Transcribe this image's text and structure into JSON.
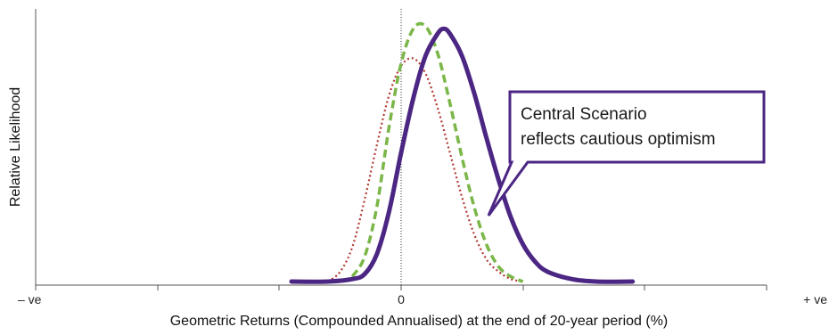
{
  "chart_data": {
    "type": "line",
    "title": "",
    "xlabel": "Geometric Returns (Compounded Annualised) at the end of 20-year period (%)",
    "ylabel": "Relative Likelihood",
    "x_tick_labels": [
      {
        "x": -3,
        "label": "– ve"
      },
      {
        "x": 0,
        "label": "0"
      },
      {
        "x": 3,
        "label": "+ ve"
      }
    ],
    "xlim": [
      -3,
      3
    ],
    "ylim": [
      0,
      1.1
    ],
    "grid": false,
    "legend": "none",
    "series": [
      {
        "style": "solid",
        "color": "#4b2683",
        "x": [
          -0.9,
          -0.6,
          -0.4,
          -0.3,
          -0.2,
          -0.1,
          0.0,
          0.1,
          0.2,
          0.3,
          0.35,
          0.4,
          0.5,
          0.6,
          0.7,
          0.8,
          0.9,
          1.0,
          1.1,
          1.2,
          1.4,
          1.6,
          1.9
        ],
        "y": [
          0.0,
          0.0,
          0.01,
          0.03,
          0.11,
          0.28,
          0.52,
          0.74,
          0.91,
          1.0,
          1.02,
          1.0,
          0.91,
          0.76,
          0.58,
          0.41,
          0.26,
          0.15,
          0.08,
          0.04,
          0.01,
          0.0,
          0.0
        ]
      },
      {
        "style": "dashed",
        "color": "#7ab648",
        "x": [
          -0.4,
          -0.3,
          -0.2,
          -0.1,
          0.0,
          0.1,
          0.2,
          0.3,
          0.4,
          0.5,
          0.6,
          0.7,
          0.8,
          0.9,
          1.0
        ],
        "y": [
          0.02,
          0.1,
          0.3,
          0.62,
          0.88,
          1.02,
          1.03,
          0.92,
          0.72,
          0.5,
          0.3,
          0.15,
          0.06,
          0.02,
          0.0
        ]
      },
      {
        "style": "dotted",
        "color": "#b23b33",
        "x": [
          -0.6,
          -0.5,
          -0.4,
          -0.3,
          -0.2,
          -0.1,
          0.0,
          0.1,
          0.2,
          0.3,
          0.4,
          0.5,
          0.6,
          0.7,
          0.8,
          0.9,
          1.0
        ],
        "y": [
          0.0,
          0.04,
          0.14,
          0.33,
          0.55,
          0.75,
          0.87,
          0.9,
          0.84,
          0.7,
          0.52,
          0.34,
          0.19,
          0.09,
          0.04,
          0.01,
          0.0
        ]
      }
    ],
    "annotation": {
      "lines": [
        "Central Scenario",
        "reflects cautious optimism"
      ],
      "border_color": "#4b2683"
    }
  }
}
